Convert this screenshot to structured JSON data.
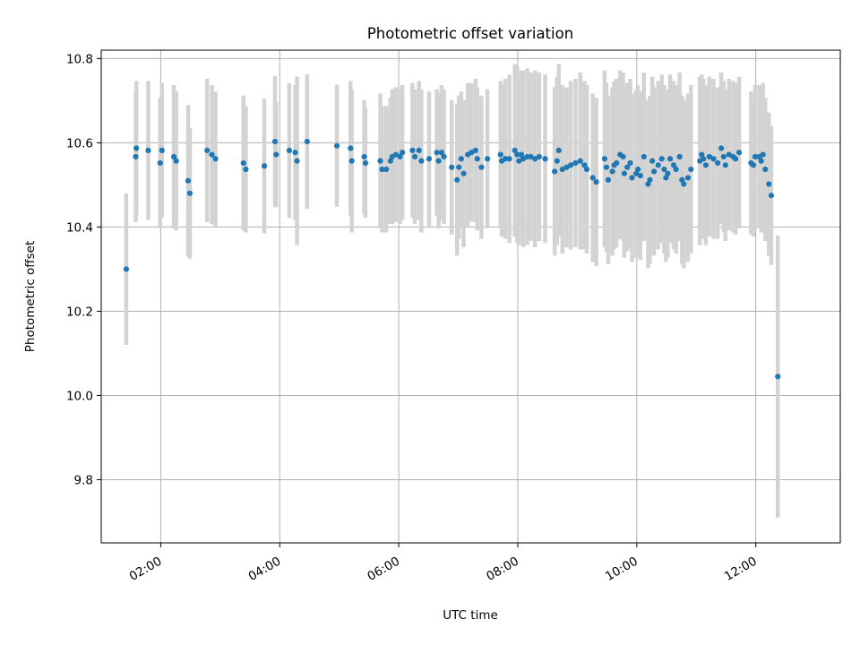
{
  "chart_data": {
    "type": "scatter",
    "title": "Photometric offset variation",
    "xlabel": "UTC time",
    "ylabel": "Photometric offset",
    "xlim": [
      1.0,
      13.42
    ],
    "ylim": [
      9.65,
      10.82
    ],
    "grid": true,
    "xticks": [
      {
        "value": 2,
        "label": "02:00"
      },
      {
        "value": 4,
        "label": "04:00"
      },
      {
        "value": 6,
        "label": "06:00"
      },
      {
        "value": 8,
        "label": "08:00"
      },
      {
        "value": 10,
        "label": "10:00"
      },
      {
        "value": 12,
        "label": "12:00"
      }
    ],
    "yticks": [
      {
        "value": 9.8,
        "label": "9.8"
      },
      {
        "value": 10.0,
        "label": "10.0"
      },
      {
        "value": 10.2,
        "label": "10.2"
      },
      {
        "value": 10.4,
        "label": "10.4"
      },
      {
        "value": 10.6,
        "label": "10.6"
      },
      {
        "value": 10.8,
        "label": "10.8"
      }
    ],
    "colors": {
      "marker": "#1f77b4",
      "errorbar": "#d3d3d3"
    },
    "series": [
      {
        "name": "Photometric offset",
        "x": [
          1.42,
          1.58,
          1.59,
          1.79,
          1.99,
          2.02,
          2.22,
          2.26,
          2.46,
          2.49,
          2.78,
          2.86,
          2.92,
          3.39,
          3.43,
          3.74,
          3.92,
          3.94,
          4.16,
          4.26,
          4.29,
          4.46,
          4.96,
          5.19,
          5.21,
          5.42,
          5.44,
          5.69,
          5.72,
          5.79,
          5.86,
          5.89,
          5.95,
          6.02,
          6.06,
          6.23,
          6.27,
          6.34,
          6.38,
          6.51,
          6.64,
          6.67,
          6.72,
          6.76,
          6.89,
          6.98,
          7.01,
          7.05,
          7.09,
          7.16,
          7.22,
          7.29,
          7.32,
          7.39,
          7.49,
          7.71,
          7.73,
          7.79,
          7.86,
          7.95,
          7.99,
          8.02,
          8.06,
          8.09,
          8.16,
          8.22,
          8.29,
          8.36,
          8.46,
          8.62,
          8.66,
          8.69,
          8.75,
          8.82,
          8.89,
          8.97,
          9.05,
          9.12,
          9.16,
          9.26,
          9.32,
          9.46,
          9.49,
          9.52,
          9.59,
          9.62,
          9.66,
          9.72,
          9.77,
          9.79,
          9.84,
          9.89,
          9.92,
          9.99,
          10.02,
          10.06,
          10.12,
          10.19,
          10.22,
          10.26,
          10.29,
          10.36,
          10.42,
          10.46,
          10.49,
          10.52,
          10.56,
          10.62,
          10.66,
          10.72,
          10.76,
          10.79,
          10.86,
          10.91,
          11.06,
          11.09,
          11.12,
          11.16,
          11.22,
          11.29,
          11.36,
          11.42,
          11.46,
          11.49,
          11.55,
          11.62,
          11.66,
          11.72,
          11.92,
          11.96,
          11.99,
          12.06,
          12.09,
          12.12,
          12.16,
          12.22,
          12.26,
          12.37
        ],
        "y": [
          10.3,
          10.567,
          10.587,
          10.582,
          10.552,
          10.582,
          10.567,
          10.557,
          10.51,
          10.48,
          10.582,
          10.572,
          10.562,
          10.552,
          10.537,
          10.545,
          10.603,
          10.572,
          10.582,
          10.577,
          10.557,
          10.603,
          10.593,
          10.587,
          10.557,
          10.567,
          10.552,
          10.557,
          10.537,
          10.537,
          10.557,
          10.567,
          10.572,
          10.567,
          10.577,
          10.582,
          10.567,
          10.582,
          10.557,
          10.562,
          10.577,
          10.557,
          10.577,
          10.567,
          10.542,
          10.512,
          10.542,
          10.562,
          10.527,
          10.572,
          10.577,
          10.582,
          10.562,
          10.542,
          10.562,
          10.572,
          10.557,
          10.562,
          10.562,
          10.582,
          10.572,
          10.557,
          10.572,
          10.562,
          10.567,
          10.567,
          10.562,
          10.567,
          10.562,
          10.532,
          10.557,
          10.582,
          10.537,
          10.542,
          10.547,
          10.552,
          10.557,
          10.547,
          10.537,
          10.517,
          10.507,
          10.562,
          10.542,
          10.512,
          10.532,
          10.547,
          10.552,
          10.572,
          10.567,
          10.527,
          10.542,
          10.552,
          10.517,
          10.527,
          10.537,
          10.522,
          10.567,
          10.502,
          10.512,
          10.557,
          10.532,
          10.547,
          10.562,
          10.537,
          10.517,
          10.527,
          10.562,
          10.547,
          10.537,
          10.567,
          10.512,
          10.502,
          10.517,
          10.537,
          10.557,
          10.572,
          10.562,
          10.547,
          10.567,
          10.562,
          10.552,
          10.587,
          10.567,
          10.547,
          10.572,
          10.567,
          10.562,
          10.577,
          10.552,
          10.547,
          10.567,
          10.567,
          10.557,
          10.572,
          10.537,
          10.502,
          10.475,
          10.045
        ],
        "yerr": [
          0.18,
          0.155,
          0.16,
          0.165,
          0.155,
          0.16,
          0.17,
          0.165,
          0.18,
          0.155,
          0.17,
          0.165,
          0.16,
          0.16,
          0.15,
          0.16,
          0.155,
          0.125,
          0.16,
          0.16,
          0.2,
          0.16,
          0.145,
          0.16,
          0.17,
          0.135,
          0.13,
          0.16,
          0.15,
          0.15,
          0.15,
          0.16,
          0.16,
          0.16,
          0.16,
          0.16,
          0.16,
          0.165,
          0.17,
          0.16,
          0.15,
          0.16,
          0.16,
          0.16,
          0.16,
          0.18,
          0.17,
          0.16,
          0.175,
          0.17,
          0.165,
          0.17,
          0.17,
          0.17,
          0.165,
          0.175,
          0.18,
          0.19,
          0.2,
          0.205,
          0.21,
          0.2,
          0.2,
          0.21,
          0.21,
          0.2,
          0.21,
          0.2,
          0.2,
          0.2,
          0.2,
          0.205,
          0.2,
          0.19,
          0.2,
          0.2,
          0.21,
          0.2,
          0.2,
          0.2,
          0.2,
          0.21,
          0.2,
          0.2,
          0.2,
          0.2,
          0.2,
          0.2,
          0.2,
          0.2,
          0.2,
          0.2,
          0.2,
          0.2,
          0.2,
          0.2,
          0.2,
          0.2,
          0.2,
          0.2,
          0.2,
          0.2,
          0.2,
          0.2,
          0.2,
          0.2,
          0.2,
          0.2,
          0.2,
          0.2,
          0.2,
          0.2,
          0.2,
          0.2,
          0.2,
          0.19,
          0.19,
          0.19,
          0.19,
          0.19,
          0.18,
          0.18,
          0.18,
          0.18,
          0.18,
          0.18,
          0.18,
          0.18,
          0.17,
          0.17,
          0.17,
          0.17,
          0.17,
          0.17,
          0.17,
          0.17,
          0.165,
          0.335
        ]
      }
    ]
  }
}
